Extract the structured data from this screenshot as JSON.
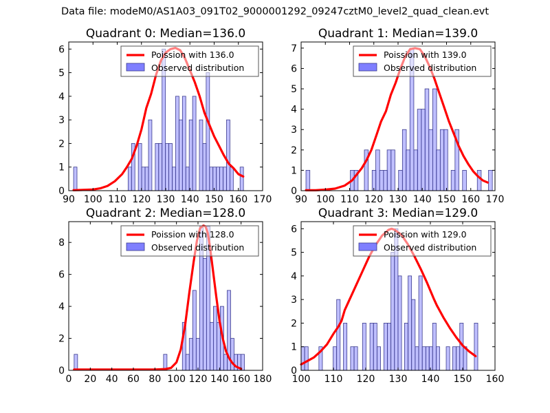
{
  "figure": {
    "suptitle": "Data file: modeM0/AS1A03_091T02_9000001292_09247cztM0_level2_quad_clean.evt"
  },
  "colors": {
    "bar_fill": "#7f7fff",
    "bar_edge": "#3a3a8c",
    "poisson_line": "#ff0000",
    "axes": "#000000"
  },
  "chart_data": [
    {
      "type": "bar",
      "title": "Quadrant 0: Median=136.0",
      "xlim": [
        90,
        170
      ],
      "ylim": [
        0,
        6.3
      ],
      "xticks": [
        90,
        100,
        110,
        120,
        130,
        140,
        150,
        160,
        170
      ],
      "yticks": [
        0,
        1,
        2,
        3,
        4,
        5,
        6
      ],
      "legend": {
        "position": "top-right",
        "entries": [
          "Poission with 136.0",
          "Observed distribution"
        ]
      },
      "bin_width": 1.4,
      "bins": [
        [
          92.0,
          1
        ],
        [
          114.5,
          1
        ],
        [
          115.9,
          2
        ],
        [
          118.7,
          2
        ],
        [
          120.1,
          1
        ],
        [
          121.5,
          1
        ],
        [
          122.9,
          3
        ],
        [
          125.7,
          2
        ],
        [
          127.1,
          2
        ],
        [
          128.5,
          6
        ],
        [
          129.9,
          2
        ],
        [
          131.3,
          2
        ],
        [
          132.7,
          1
        ],
        [
          134.1,
          4
        ],
        [
          135.5,
          3
        ],
        [
          136.9,
          4
        ],
        [
          138.3,
          1
        ],
        [
          139.7,
          3
        ],
        [
          141.1,
          4
        ],
        [
          143.9,
          3
        ],
        [
          145.3,
          2
        ],
        [
          146.7,
          5
        ],
        [
          148.1,
          1
        ],
        [
          149.5,
          1
        ],
        [
          150.9,
          1
        ],
        [
          152.3,
          1
        ],
        [
          153.7,
          1
        ],
        [
          155.1,
          3
        ],
        [
          156.5,
          1
        ],
        [
          160.7,
          1
        ]
      ],
      "poisson": {
        "label": "Poission with 136.0",
        "x": [
          92,
          95,
          100,
          103,
          106,
          109,
          112,
          114,
          116,
          118,
          120,
          122,
          124,
          126,
          128,
          130,
          132,
          134,
          136,
          138,
          140,
          142,
          144,
          146,
          148,
          150,
          152,
          154,
          156,
          158,
          160,
          162
        ],
        "y": [
          0.02,
          0.03,
          0.05,
          0.1,
          0.2,
          0.4,
          0.7,
          1.0,
          1.35,
          1.9,
          2.6,
          3.5,
          4.1,
          4.9,
          5.5,
          5.85,
          6.0,
          6.05,
          5.95,
          5.6,
          5.1,
          4.6,
          4.0,
          3.3,
          2.8,
          2.3,
          1.9,
          1.5,
          1.15,
          0.95,
          0.7,
          0.6
        ]
      }
    },
    {
      "type": "bar",
      "title": "Quadrant 1: Median=139.0",
      "xlim": [
        90,
        170
      ],
      "ylim": [
        0,
        7.3
      ],
      "xticks": [
        90,
        100,
        110,
        120,
        130,
        140,
        150,
        160,
        170
      ],
      "yticks": [
        0,
        1,
        2,
        3,
        4,
        5,
        6,
        7
      ],
      "legend": {
        "position": "top-right",
        "entries": [
          "Poission with 139.0",
          "Observed distribution"
        ]
      },
      "bin_width": 1.6,
      "bins": [
        [
          92.0,
          1
        ],
        [
          110.3,
          1
        ],
        [
          111.9,
          1
        ],
        [
          116.1,
          2
        ],
        [
          119.3,
          1
        ],
        [
          120.8,
          2
        ],
        [
          122.4,
          1
        ],
        [
          124.0,
          1
        ],
        [
          125.5,
          2
        ],
        [
          127.1,
          2
        ],
        [
          130.2,
          1
        ],
        [
          131.8,
          3
        ],
        [
          133.3,
          2
        ],
        [
          134.9,
          7
        ],
        [
          136.5,
          2
        ],
        [
          138.0,
          4
        ],
        [
          139.6,
          4
        ],
        [
          141.1,
          5
        ],
        [
          142.7,
          3
        ],
        [
          144.3,
          5
        ],
        [
          145.8,
          2
        ],
        [
          147.4,
          3
        ],
        [
          148.9,
          3
        ],
        [
          151.9,
          1
        ],
        [
          153.5,
          3
        ],
        [
          156.6,
          1
        ],
        [
          162.7,
          1
        ],
        [
          167.3,
          1
        ]
      ],
      "poisson": {
        "label": "Poission with 139.0",
        "x": [
          92,
          96,
          100,
          104,
          108,
          111,
          113,
          115,
          117,
          119,
          121,
          123,
          125,
          127,
          129,
          131,
          133,
          135,
          137,
          139,
          141,
          143,
          145,
          147,
          149,
          151,
          153,
          155,
          157,
          159,
          161,
          163,
          165,
          167
        ],
        "y": [
          0.02,
          0.02,
          0.05,
          0.1,
          0.25,
          0.5,
          0.8,
          1.1,
          1.5,
          2.0,
          2.7,
          3.4,
          3.9,
          4.7,
          5.3,
          6.0,
          6.6,
          6.95,
          7.0,
          6.95,
          6.6,
          6.1,
          5.5,
          4.8,
          4.1,
          3.4,
          2.8,
          2.2,
          1.7,
          1.3,
          0.95,
          0.7,
          0.5,
          0.4
        ]
      }
    },
    {
      "type": "bar",
      "title": "Quadrant 2: Median=128.0",
      "xlim": [
        0,
        180
      ],
      "ylim": [
        0,
        9.3
      ],
      "xticks": [
        0,
        20,
        40,
        60,
        80,
        100,
        120,
        140,
        160,
        180
      ],
      "yticks": [
        0,
        2,
        4,
        6,
        8
      ],
      "legend": {
        "position": "top-right",
        "entries": [
          "Poission with 128.0",
          "Observed distribution"
        ]
      },
      "bin_width": 3.2,
      "bins": [
        [
          5.0,
          1
        ],
        [
          88.0,
          1
        ],
        [
          105.5,
          3
        ],
        [
          108.7,
          1
        ],
        [
          111.9,
          2
        ],
        [
          115.1,
          5
        ],
        [
          118.3,
          2
        ],
        [
          121.5,
          9
        ],
        [
          124.7,
          7
        ],
        [
          127.9,
          9
        ],
        [
          131.1,
          3
        ],
        [
          134.3,
          4
        ],
        [
          137.5,
          3
        ],
        [
          140.7,
          4
        ],
        [
          143.9,
          1
        ],
        [
          147.1,
          5
        ],
        [
          150.3,
          2
        ],
        [
          153.5,
          1
        ],
        [
          156.7,
          1
        ],
        [
          159.9,
          1
        ]
      ],
      "poisson": {
        "label": "Poission with 128.0",
        "x": [
          5,
          20,
          40,
          60,
          80,
          90,
          95,
          100,
          104,
          108,
          112,
          116,
          119,
          122,
          125,
          127,
          129,
          131,
          134,
          137,
          140,
          143,
          146,
          149,
          152,
          155,
          158,
          160
        ],
        "y": [
          0.05,
          0.05,
          0.05,
          0.05,
          0.05,
          0.08,
          0.15,
          0.5,
          1.3,
          2.8,
          4.9,
          6.8,
          8.1,
          8.9,
          9.05,
          9.0,
          8.6,
          7.8,
          6.2,
          4.6,
          3.1,
          2.0,
          1.2,
          0.75,
          0.45,
          0.25,
          0.15,
          0.1
        ]
      }
    },
    {
      "type": "bar",
      "title": "Quadrant 3: Median=129.0",
      "xlim": [
        100,
        160
      ],
      "ylim": [
        0,
        6.3
      ],
      "xticks": [
        100,
        110,
        120,
        130,
        140,
        150,
        160
      ],
      "yticks": [
        0,
        1,
        2,
        3,
        4,
        5,
        6
      ],
      "legend": {
        "position": "top-right",
        "entries": [
          "Poission with 129.0",
          "Observed distribution"
        ]
      },
      "bin_width": 1.08,
      "bins": [
        [
          100.0,
          1
        ],
        [
          101.1,
          1
        ],
        [
          105.5,
          1
        ],
        [
          109.9,
          1
        ],
        [
          111.0,
          3
        ],
        [
          113.1,
          2
        ],
        [
          115.3,
          1
        ],
        [
          116.4,
          1
        ],
        [
          119.0,
          2
        ],
        [
          121.3,
          2
        ],
        [
          122.4,
          2
        ],
        [
          123.5,
          1
        ],
        [
          125.6,
          2
        ],
        [
          126.7,
          2
        ],
        [
          127.8,
          5
        ],
        [
          128.9,
          6
        ],
        [
          130.0,
          4
        ],
        [
          132.0,
          2
        ],
        [
          133.1,
          4
        ],
        [
          134.2,
          3
        ],
        [
          135.3,
          1
        ],
        [
          136.4,
          4
        ],
        [
          137.5,
          1
        ],
        [
          138.6,
          1
        ],
        [
          139.6,
          1
        ],
        [
          140.7,
          2
        ],
        [
          141.8,
          1
        ],
        [
          144.9,
          1
        ],
        [
          146.9,
          1
        ],
        [
          148.0,
          1
        ],
        [
          149.1,
          2
        ],
        [
          150.2,
          1
        ],
        [
          153.6,
          2
        ]
      ],
      "poisson": {
        "label": "Poission with 129.0",
        "x": [
          100,
          102,
          104,
          106,
          108,
          110,
          111.5,
          112.5,
          113.5,
          115,
          117,
          119,
          121,
          123,
          125,
          127,
          128,
          129,
          131,
          133,
          135,
          137,
          139,
          141,
          142,
          144,
          146,
          148,
          150,
          152,
          154
        ],
        "y": [
          0.25,
          0.4,
          0.55,
          0.8,
          1.1,
          1.55,
          1.85,
          2.1,
          2.55,
          3.0,
          3.6,
          4.2,
          4.8,
          5.3,
          5.7,
          5.95,
          6.0,
          5.95,
          5.75,
          5.35,
          4.85,
          4.3,
          3.7,
          3.05,
          2.75,
          2.25,
          1.8,
          1.4,
          1.05,
          0.8,
          0.6
        ]
      }
    }
  ]
}
